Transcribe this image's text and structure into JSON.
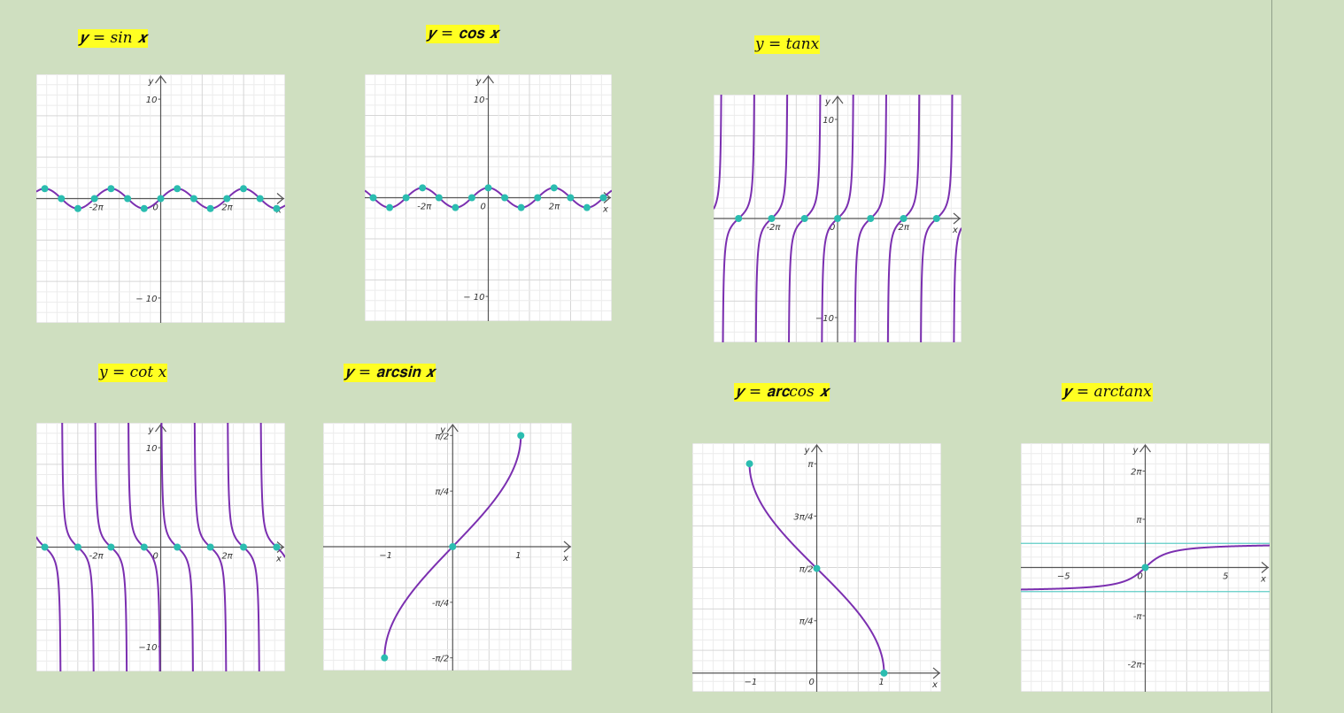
{
  "accent": {
    "curve": "#7b2fb0",
    "point": "#2bbdb0",
    "asymptote": "#5fcdc6",
    "label_bg": "#ffff22"
  },
  "chart_data": [
    {
      "id": "sin",
      "type": "line",
      "title": "𝒚 = sin 𝒙",
      "function": "sin",
      "xlim": [
        -11.8,
        11.8
      ],
      "ylim": [
        -12.5,
        12.5
      ],
      "xticks": [
        {
          "v": -6.2832,
          "t": "-2π"
        },
        {
          "v": 0,
          "t": "0"
        },
        {
          "v": 6.2832,
          "t": "2π"
        }
      ],
      "yticks": [
        {
          "v": 10,
          "t": "10"
        },
        {
          "v": -10,
          "t": "− 10"
        }
      ],
      "xlabel": "x",
      "ylabel": "y"
    },
    {
      "id": "cos",
      "type": "line",
      "title": "𝒚 = 𝐜𝐨𝐬 𝒙",
      "function": "cos",
      "xlim": [
        -11.8,
        11.8
      ],
      "ylim": [
        -12.5,
        12.5
      ],
      "xticks": [
        {
          "v": -6.2832,
          "t": "-2π"
        },
        {
          "v": 0,
          "t": "0"
        },
        {
          "v": 6.2832,
          "t": "2π"
        }
      ],
      "yticks": [
        {
          "v": 10,
          "t": "10"
        },
        {
          "v": -10,
          "t": "− 10"
        }
      ],
      "xlabel": "x",
      "ylabel": "y"
    },
    {
      "id": "tan",
      "type": "line",
      "title": "𝑦 = 𝑡𝑎𝑛𝑥",
      "function": "tan",
      "xlim": [
        -11.8,
        11.8
      ],
      "ylim": [
        -12.5,
        12.5
      ],
      "xticks": [
        {
          "v": -6.2832,
          "t": "-2π"
        },
        {
          "v": 0,
          "t": "0"
        },
        {
          "v": 6.2832,
          "t": "2π"
        }
      ],
      "yticks": [
        {
          "v": 10,
          "t": "10"
        },
        {
          "v": -10,
          "t": "−10"
        }
      ],
      "xlabel": "x",
      "ylabel": "y"
    },
    {
      "id": "cot",
      "type": "line",
      "title": "𝑦 = cot 𝑥",
      "function": "cot",
      "xlim": [
        -11.8,
        11.8
      ],
      "ylim": [
        -12.5,
        12.5
      ],
      "xticks": [
        {
          "v": -6.2832,
          "t": "-2π"
        },
        {
          "v": 0,
          "t": "0"
        },
        {
          "v": 6.2832,
          "t": "2π"
        }
      ],
      "yticks": [
        {
          "v": 10,
          "t": "10"
        },
        {
          "v": -10,
          "t": "−10"
        }
      ],
      "xlabel": "x",
      "ylabel": "y"
    },
    {
      "id": "arcsin",
      "type": "line",
      "title": "𝒚 = 𝐚𝐫𝐜𝐬𝐢𝐧 𝒙",
      "function": "arcsin",
      "xlim": [
        -1.9,
        1.75
      ],
      "ylim": [
        -1.75,
        1.75
      ],
      "xticks": [
        {
          "v": -1,
          "t": "−1"
        },
        {
          "v": 1,
          "t": "1"
        }
      ],
      "yticks": [
        {
          "v": 1.5708,
          "t": "π/2"
        },
        {
          "v": 0.7854,
          "t": "π/4"
        },
        {
          "v": -0.7854,
          "t": "-π/4"
        },
        {
          "v": -1.5708,
          "t": "-π/2"
        }
      ],
      "xlabel": "x",
      "ylabel": "y"
    },
    {
      "id": "arccos",
      "type": "line",
      "title": "𝒚 = 𝐚𝐫𝐜cos 𝒙",
      "function": "arccos",
      "xlim": [
        -1.85,
        1.85
      ],
      "ylim": [
        -0.28,
        3.45
      ],
      "xticks": [
        {
          "v": -1,
          "t": "−1"
        },
        {
          "v": 0,
          "t": "0"
        },
        {
          "v": 1,
          "t": "1"
        }
      ],
      "yticks": [
        {
          "v": 3.1416,
          "t": "π"
        },
        {
          "v": 2.3562,
          "t": "3π/4"
        },
        {
          "v": 1.5708,
          "t": "π/2"
        },
        {
          "v": 0.7854,
          "t": "π/4"
        }
      ],
      "xlabel": "x",
      "ylabel": "y"
    },
    {
      "id": "arctan",
      "type": "line",
      "title": "𝒚 = arctanx",
      "function": "arctan",
      "xlim": [
        -7.5,
        7.5
      ],
      "ylim": [
        -8.1,
        8.1
      ],
      "xticks": [
        {
          "v": -5,
          "t": "−5"
        },
        {
          "v": 0,
          "t": "0"
        },
        {
          "v": 5,
          "t": "5"
        }
      ],
      "yticks": [
        {
          "v": 6.2832,
          "t": "2π"
        },
        {
          "v": 3.1416,
          "t": "π"
        },
        {
          "v": -3.1416,
          "t": "-π"
        },
        {
          "v": -6.2832,
          "t": "-2π"
        }
      ],
      "xlabel": "x",
      "ylabel": "y",
      "asymptotes": [
        1.5708,
        -1.5708
      ]
    }
  ]
}
